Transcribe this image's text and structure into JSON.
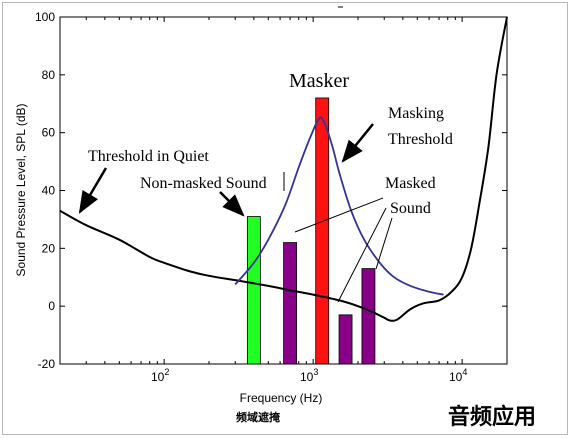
{
  "chart_data": {
    "type": "line",
    "title": "",
    "xlabel": "Frequency (Hz)",
    "ylabel": "Sound Pressure Level, SPL (dB)",
    "x_scale": "log",
    "xlim": [
      20,
      20000
    ],
    "ylim": [
      -20,
      100
    ],
    "xticks": [
      {
        "base": "10",
        "exp": "2",
        "value": 100
      },
      {
        "base": "10",
        "exp": "3",
        "value": 1000
      },
      {
        "base": "10",
        "exp": "4",
        "value": 10000
      }
    ],
    "yticks": [
      -20,
      0,
      20,
      40,
      60,
      80,
      100
    ],
    "grid": false,
    "series": [
      {
        "name": "Threshold in Quiet",
        "color": "#000000",
        "x": [
          20,
          30,
          50,
          80,
          100,
          150,
          200,
          300,
          500,
          700,
          1000,
          1500,
          2000,
          2500,
          3000,
          3300,
          3700,
          4500,
          5500,
          7000,
          8500,
          10000,
          11500,
          13000,
          15000,
          17000,
          20000
        ],
        "y": [
          33,
          28,
          23,
          17,
          15,
          12,
          10.5,
          9,
          7,
          5.5,
          4,
          2,
          0,
          -2,
          -4,
          -5,
          -4.5,
          -1,
          1,
          2,
          5,
          10,
          20,
          35,
          55,
          80,
          100
        ]
      },
      {
        "name": "Masking Threshold",
        "color": "#333399",
        "x": [
          300,
          400,
          500,
          650,
          800,
          950,
          1100,
          1200,
          1350,
          1500,
          1800,
          2200,
          2800,
          3500,
          4500,
          6000,
          7500
        ],
        "y": [
          7.5,
          15,
          23,
          35,
          48,
          58,
          65,
          63,
          55,
          46,
          33,
          23,
          15,
          10,
          7,
          5,
          4
        ]
      }
    ],
    "bars": [
      {
        "freq": 400,
        "spl": 31,
        "color": "#22ff22",
        "role": "non-masked"
      },
      {
        "freq": 700,
        "spl": 22,
        "color": "#880088",
        "role": "masked"
      },
      {
        "freq": 1150,
        "spl": 72,
        "color": "#ff1111",
        "role": "masker"
      },
      {
        "freq": 1650,
        "spl": -3,
        "color": "#880088",
        "role": "masked"
      },
      {
        "freq": 2350,
        "spl": 13,
        "color": "#880088",
        "role": "masked"
      }
    ],
    "annotations": {
      "masker": "Masker",
      "masking_threshold_1": "Masking",
      "masking_threshold_2": "Threshold",
      "threshold_in_quiet": "Threshold in Quiet",
      "non_masked": "Non-masked Sound",
      "masked_1": "Masked",
      "masked_2": "Sound"
    },
    "caption_below_axis": "频域遮掩"
  },
  "watermark": "音频应用"
}
